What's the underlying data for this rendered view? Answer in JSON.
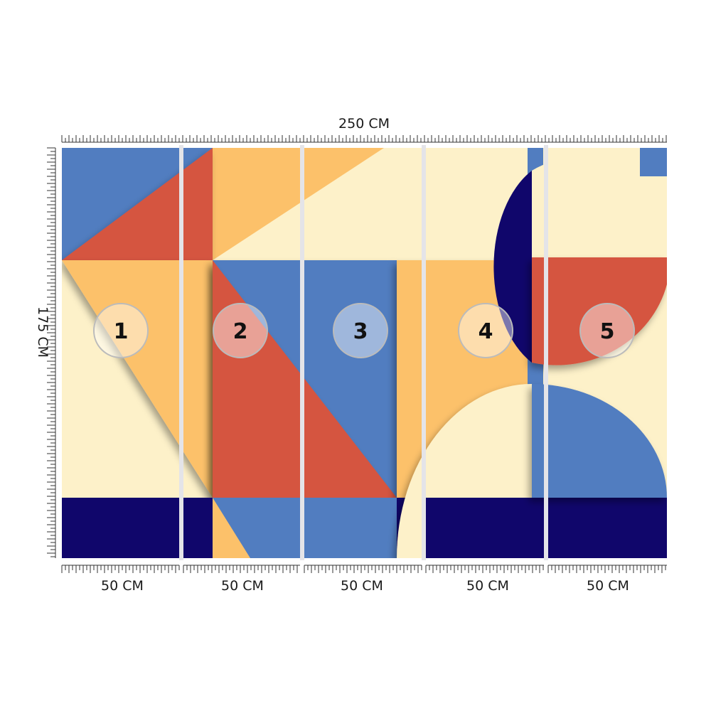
{
  "dimensions": {
    "width_label": "250 CM",
    "height_label": "175 CM",
    "panel_width_labels": [
      "50 CM",
      "50 CM",
      "50 CM",
      "50 CM",
      "50 CM"
    ]
  },
  "panels": [
    {
      "number": "1"
    },
    {
      "number": "2"
    },
    {
      "number": "3"
    },
    {
      "number": "4"
    },
    {
      "number": "5"
    }
  ],
  "colors": {
    "cream": "#fdf1c9",
    "orange": "#fcc16a",
    "red": "#d5553f",
    "blue": "#517dc0",
    "navy": "#10066b",
    "divider": "#e4e4e8"
  }
}
